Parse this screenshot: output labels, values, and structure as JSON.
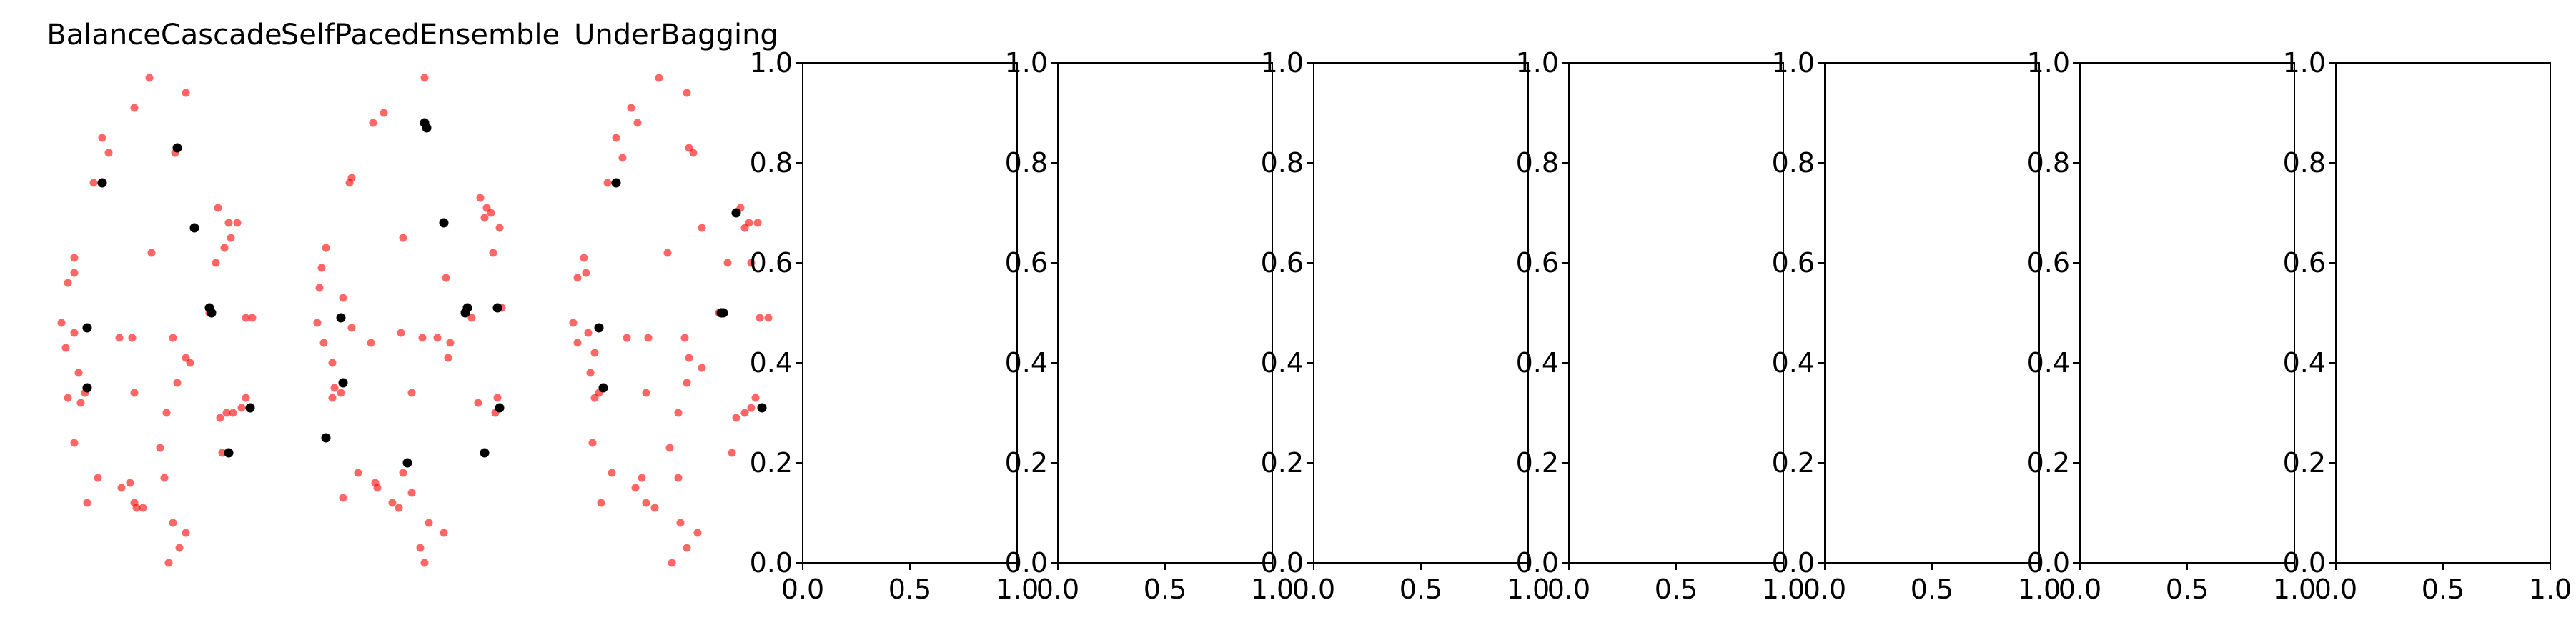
{
  "figure": {
    "colors": {
      "majority": "#ff0000",
      "minority": "#000000",
      "axis": "#000000",
      "background": "#ffffff"
    },
    "point_alpha": 0.6
  },
  "chart_data": [
    {
      "type": "scatter",
      "title": "BalanceCascade",
      "axes_visible": false,
      "series": [
        {
          "color": "#ff0000",
          "points": [
            [
              0.43,
              0.97
            ],
            [
              0.36,
              0.91
            ],
            [
              0.6,
              0.94
            ],
            [
              0.21,
              0.85
            ],
            [
              0.24,
              0.82
            ],
            [
              0.56,
              0.83
            ],
            [
              0.55,
              0.82
            ],
            [
              0.17,
              0.76
            ],
            [
              0.75,
              0.71
            ],
            [
              0.8,
              0.68
            ],
            [
              0.84,
              0.68
            ],
            [
              0.78,
              0.63
            ],
            [
              0.81,
              0.65
            ],
            [
              0.44,
              0.62
            ],
            [
              0.08,
              0.61
            ],
            [
              0.05,
              0.56
            ],
            [
              0.08,
              0.58
            ],
            [
              0.74,
              0.6
            ],
            [
              0.71,
              0.5
            ],
            [
              0.88,
              0.49
            ],
            [
              0.91,
              0.49
            ],
            [
              0.02,
              0.48
            ],
            [
              0.08,
              0.46
            ],
            [
              0.29,
              0.45
            ],
            [
              0.35,
              0.45
            ],
            [
              0.54,
              0.45
            ],
            [
              0.04,
              0.43
            ],
            [
              0.6,
              0.41
            ],
            [
              0.62,
              0.4
            ],
            [
              0.1,
              0.38
            ],
            [
              0.13,
              0.34
            ],
            [
              0.36,
              0.34
            ],
            [
              0.56,
              0.36
            ],
            [
              0.05,
              0.33
            ],
            [
              0.11,
              0.32
            ],
            [
              0.51,
              0.3
            ],
            [
              0.88,
              0.33
            ],
            [
              0.86,
              0.31
            ],
            [
              0.76,
              0.29
            ],
            [
              0.79,
              0.3
            ],
            [
              0.82,
              0.3
            ],
            [
              0.48,
              0.23
            ],
            [
              0.08,
              0.24
            ],
            [
              0.77,
              0.22
            ],
            [
              0.19,
              0.17
            ],
            [
              0.34,
              0.16
            ],
            [
              0.3,
              0.15
            ],
            [
              0.5,
              0.17
            ],
            [
              0.14,
              0.12
            ],
            [
              0.36,
              0.12
            ],
            [
              0.37,
              0.11
            ],
            [
              0.4,
              0.11
            ],
            [
              0.54,
              0.08
            ],
            [
              0.6,
              0.06
            ],
            [
              0.57,
              0.03
            ],
            [
              0.52,
              0.0
            ]
          ]
        },
        {
          "color": "#000000",
          "points": [
            [
              0.56,
              0.83
            ],
            [
              0.21,
              0.76
            ],
            [
              0.64,
              0.67
            ],
            [
              0.72,
              0.5
            ],
            [
              0.71,
              0.51
            ],
            [
              0.14,
              0.47
            ],
            [
              0.14,
              0.35
            ],
            [
              0.9,
              0.31
            ],
            [
              0.8,
              0.22
            ]
          ]
        }
      ]
    },
    {
      "type": "scatter",
      "title": "SelfPacedEnsemble",
      "axes_visible": false,
      "series": [
        {
          "color": "#ff0000",
          "points": [
            [
              0.52,
              0.97
            ],
            [
              0.33,
              0.9
            ],
            [
              0.28,
              0.88
            ],
            [
              0.18,
              0.77
            ],
            [
              0.17,
              0.76
            ],
            [
              0.78,
              0.73
            ],
            [
              0.81,
              0.71
            ],
            [
              0.83,
              0.7
            ],
            [
              0.8,
              0.69
            ],
            [
              0.87,
              0.67
            ],
            [
              0.42,
              0.65
            ],
            [
              0.84,
              0.62
            ],
            [
              0.06,
              0.63
            ],
            [
              0.04,
              0.59
            ],
            [
              0.03,
              0.55
            ],
            [
              0.62,
              0.57
            ],
            [
              0.14,
              0.53
            ],
            [
              0.74,
              0.49
            ],
            [
              0.88,
              0.51
            ],
            [
              0.02,
              0.48
            ],
            [
              0.18,
              0.47
            ],
            [
              0.41,
              0.46
            ],
            [
              0.51,
              0.45
            ],
            [
              0.58,
              0.45
            ],
            [
              0.05,
              0.44
            ],
            [
              0.27,
              0.44
            ],
            [
              0.64,
              0.44
            ],
            [
              0.63,
              0.41
            ],
            [
              0.09,
              0.4
            ],
            [
              0.1,
              0.35
            ],
            [
              0.13,
              0.34
            ],
            [
              0.46,
              0.34
            ],
            [
              0.09,
              0.33
            ],
            [
              0.86,
              0.33
            ],
            [
              0.77,
              0.32
            ],
            [
              0.85,
              0.3
            ],
            [
              0.21,
              0.18
            ],
            [
              0.42,
              0.18
            ],
            [
              0.46,
              0.14
            ],
            [
              0.29,
              0.16
            ],
            [
              0.3,
              0.15
            ],
            [
              0.37,
              0.12
            ],
            [
              0.4,
              0.11
            ],
            [
              0.14,
              0.13
            ],
            [
              0.54,
              0.08
            ],
            [
              0.61,
              0.06
            ],
            [
              0.5,
              0.03
            ],
            [
              0.52,
              0.0
            ]
          ]
        },
        {
          "color": "#000000",
          "points": [
            [
              0.52,
              0.88
            ],
            [
              0.53,
              0.87
            ],
            [
              0.61,
              0.68
            ],
            [
              0.72,
              0.51
            ],
            [
              0.71,
              0.5
            ],
            [
              0.86,
              0.51
            ],
            [
              0.13,
              0.49
            ],
            [
              0.14,
              0.36
            ],
            [
              0.87,
              0.31
            ],
            [
              0.06,
              0.25
            ],
            [
              0.44,
              0.2
            ],
            [
              0.8,
              0.22
            ]
          ]
        }
      ]
    },
    {
      "type": "scatter",
      "title": "UnderBagging",
      "axes_visible": false,
      "series": [
        {
          "color": "#ff0000",
          "points": [
            [
              0.42,
              0.97
            ],
            [
              0.29,
              0.91
            ],
            [
              0.55,
              0.94
            ],
            [
              0.32,
              0.88
            ],
            [
              0.22,
              0.85
            ],
            [
              0.56,
              0.83
            ],
            [
              0.58,
              0.82
            ],
            [
              0.25,
              0.81
            ],
            [
              0.18,
              0.76
            ],
            [
              0.8,
              0.71
            ],
            [
              0.84,
              0.68
            ],
            [
              0.82,
              0.67
            ],
            [
              0.88,
              0.68
            ],
            [
              0.62,
              0.67
            ],
            [
              0.46,
              0.62
            ],
            [
              0.07,
              0.61
            ],
            [
              0.04,
              0.57
            ],
            [
              0.08,
              0.58
            ],
            [
              0.85,
              0.6
            ],
            [
              0.74,
              0.6
            ],
            [
              0.7,
              0.5
            ],
            [
              0.89,
              0.49
            ],
            [
              0.93,
              0.49
            ],
            [
              0.02,
              0.48
            ],
            [
              0.09,
              0.46
            ],
            [
              0.27,
              0.45
            ],
            [
              0.37,
              0.45
            ],
            [
              0.54,
              0.45
            ],
            [
              0.04,
              0.44
            ],
            [
              0.12,
              0.42
            ],
            [
              0.56,
              0.41
            ],
            [
              0.62,
              0.39
            ],
            [
              0.1,
              0.38
            ],
            [
              0.14,
              0.34
            ],
            [
              0.36,
              0.34
            ],
            [
              0.55,
              0.36
            ],
            [
              0.12,
              0.33
            ],
            [
              0.51,
              0.3
            ],
            [
              0.87,
              0.33
            ],
            [
              0.85,
              0.31
            ],
            [
              0.78,
              0.29
            ],
            [
              0.82,
              0.3
            ],
            [
              0.47,
              0.23
            ],
            [
              0.11,
              0.24
            ],
            [
              0.76,
              0.22
            ],
            [
              0.2,
              0.18
            ],
            [
              0.34,
              0.17
            ],
            [
              0.31,
              0.15
            ],
            [
              0.51,
              0.17
            ],
            [
              0.15,
              0.12
            ],
            [
              0.36,
              0.12
            ],
            [
              0.4,
              0.11
            ],
            [
              0.52,
              0.08
            ],
            [
              0.6,
              0.06
            ],
            [
              0.55,
              0.03
            ],
            [
              0.48,
              0.0
            ]
          ]
        },
        {
          "color": "#000000",
          "points": [
            [
              0.22,
              0.76
            ],
            [
              0.72,
              0.5
            ],
            [
              0.71,
              0.5
            ],
            [
              0.14,
              0.47
            ],
            [
              0.16,
              0.35
            ],
            [
              0.9,
              0.31
            ],
            [
              0.78,
              0.7
            ]
          ]
        }
      ]
    },
    {
      "type": "scatter",
      "title": "",
      "xlim": [
        0,
        1
      ],
      "ylim": [
        0,
        1
      ],
      "xticks": [
        "0.0",
        "0.5",
        "1.0"
      ],
      "yticks": [
        "0.0",
        "0.2",
        "0.4",
        "0.6",
        "0.8",
        "1.0"
      ],
      "series": []
    },
    {
      "type": "scatter",
      "title": "",
      "xlim": [
        0,
        1
      ],
      "ylim": [
        0,
        1
      ],
      "xticks": [
        "0.0",
        "0.5",
        "1.0"
      ],
      "yticks": [
        "0.0",
        "0.2",
        "0.4",
        "0.6",
        "0.8",
        "1.0"
      ],
      "series": []
    },
    {
      "type": "scatter",
      "title": "",
      "xlim": [
        0,
        1
      ],
      "ylim": [
        0,
        1
      ],
      "xticks": [
        "0.0",
        "0.5",
        "1.0"
      ],
      "yticks": [
        "0.0",
        "0.2",
        "0.4",
        "0.6",
        "0.8",
        "1.0"
      ],
      "series": []
    },
    {
      "type": "scatter",
      "title": "",
      "xlim": [
        0,
        1
      ],
      "ylim": [
        0,
        1
      ],
      "xticks": [
        "0.0",
        "0.5",
        "1.0"
      ],
      "yticks": [
        "0.0",
        "0.2",
        "0.4",
        "0.6",
        "0.8",
        "1.0"
      ],
      "series": []
    },
    {
      "type": "scatter",
      "title": "",
      "xlim": [
        0,
        1
      ],
      "ylim": [
        0,
        1
      ],
      "xticks": [
        "0.0",
        "0.5",
        "1.0"
      ],
      "yticks": [
        "0.0",
        "0.2",
        "0.4",
        "0.6",
        "0.8",
        "1.0"
      ],
      "series": []
    },
    {
      "type": "scatter",
      "title": "",
      "xlim": [
        0,
        1
      ],
      "ylim": [
        0,
        1
      ],
      "xticks": [
        "0.0",
        "0.5",
        "1.0"
      ],
      "yticks": [
        "0.0",
        "0.2",
        "0.4",
        "0.6",
        "0.8",
        "1.0"
      ],
      "series": []
    },
    {
      "type": "scatter",
      "title": "",
      "xlim": [
        0,
        1
      ],
      "ylim": [
        0,
        1
      ],
      "xticks": [
        "0.0",
        "0.5",
        "1.0"
      ],
      "yticks": [
        "0.0",
        "0.2",
        "0.4",
        "0.6",
        "0.8",
        "1.0"
      ],
      "series": []
    }
  ]
}
